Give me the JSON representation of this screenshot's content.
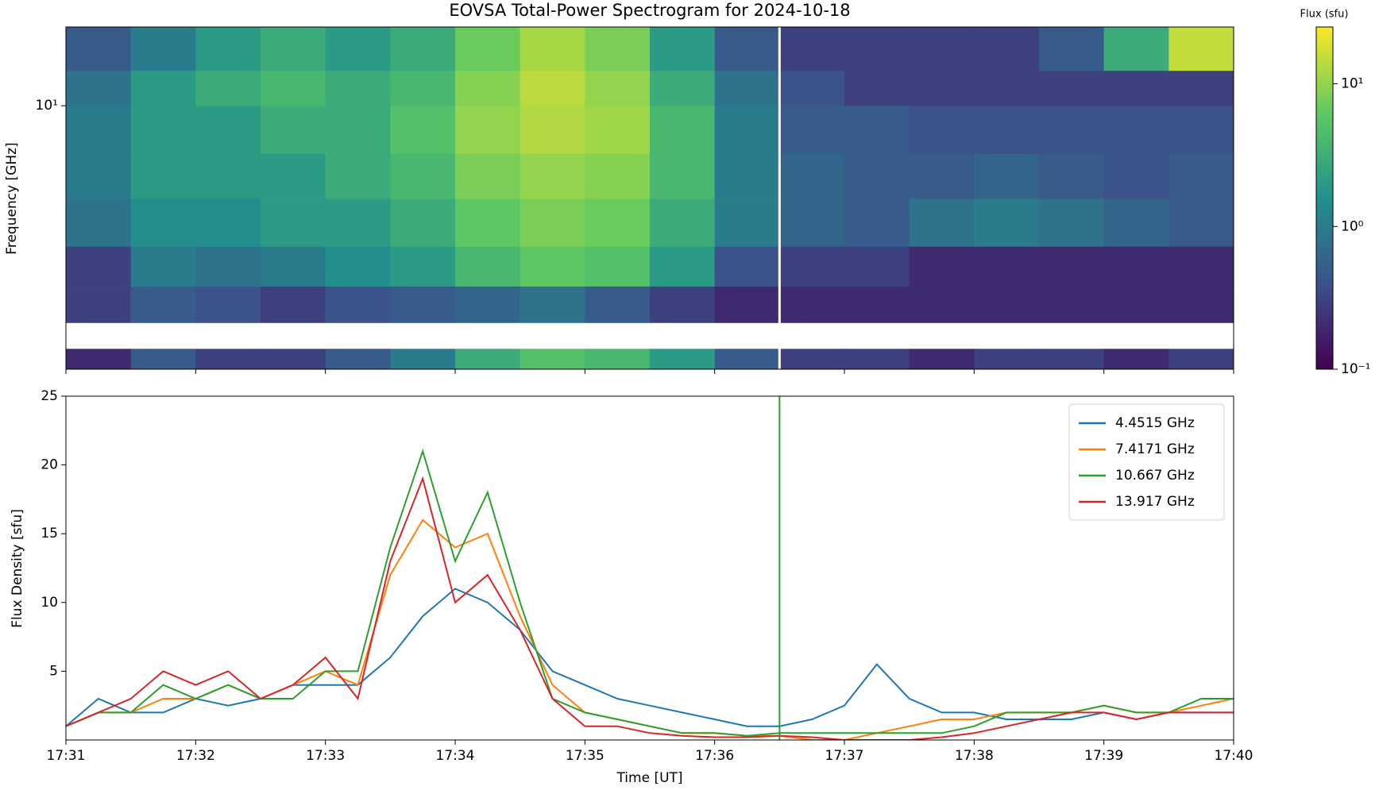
{
  "chart_data": [
    {
      "type": "heatmap",
      "title": "EOVSA Total-Power Spectrogram for 2024-10-18",
      "y_label": "Frequency [GHz]",
      "log_y": true,
      "x": [
        "17:31:00",
        "17:31:30",
        "17:32:00",
        "17:32:30",
        "17:33:00",
        "17:33:30",
        "17:34:00",
        "17:34:30",
        "17:35:00",
        "17:35:30",
        "17:36:00",
        "17:36:30",
        "17:37:00",
        "17:37:30",
        "17:38:00",
        "17:38:30",
        "17:39:00",
        "17:39:30",
        "17:40:00"
      ],
      "y": [
        1.4,
        1.63,
        1.98,
        2.6,
        3.5,
        5,
        7,
        10,
        13,
        18
      ],
      "ylim": [
        1.4,
        18
      ],
      "yticks": [
        {
          "value": 10,
          "label": "10¹"
        }
      ],
      "values": [
        [
          0.2,
          0.5,
          0.3,
          0.3,
          0.5,
          1,
          3,
          5,
          4,
          2,
          0.5,
          0.3,
          0.3,
          0.2,
          0.3,
          0.3,
          0.2,
          0.3
        ],
        [
          null,
          null,
          null,
          null,
          null,
          null,
          null,
          null,
          null,
          null,
          null,
          null,
          null,
          null,
          null,
          null,
          null,
          null
        ],
        [
          0.3,
          0.5,
          0.4,
          0.3,
          0.4,
          0.5,
          0.6,
          0.8,
          0.5,
          0.3,
          0.2,
          0.2,
          0.2,
          0.2,
          0.2,
          0.2,
          0.2,
          0.2
        ],
        [
          0.3,
          1,
          0.8,
          1,
          1.5,
          2,
          4,
          6,
          5,
          2,
          0.4,
          0.3,
          0.3,
          0.2,
          0.2,
          0.2,
          0.2,
          0.2
        ],
        [
          0.8,
          1.5,
          1.5,
          2,
          2,
          3,
          6,
          8,
          7,
          3,
          1,
          0.6,
          0.5,
          0.8,
          1,
          0.8,
          0.6,
          0.5
        ],
        [
          1,
          2,
          2,
          2,
          3,
          4,
          8,
          10,
          9,
          4,
          1,
          0.6,
          0.5,
          0.5,
          0.6,
          0.5,
          0.4,
          0.5
        ],
        [
          1,
          2,
          2,
          3,
          3,
          5,
          10,
          13,
          11,
          4,
          1,
          0.5,
          0.5,
          0.4,
          0.4,
          0.4,
          0.4,
          0.4
        ],
        [
          0.8,
          2,
          3,
          4,
          3,
          4,
          9,
          14,
          10,
          3,
          0.8,
          0.4,
          0.3,
          0.3,
          0.3,
          0.3,
          0.3,
          0.3
        ],
        [
          0.5,
          1,
          2,
          3,
          2,
          3,
          7,
          12,
          8,
          2,
          0.5,
          0.3,
          0.3,
          0.3,
          0.3,
          0.5,
          3,
          15
        ]
      ],
      "vline": {
        "x": "17:36:30",
        "color": "#ffffff"
      },
      "colorbar": {
        "label": "Flux (sfu)",
        "lim": [
          0.1,
          25
        ],
        "log": true,
        "ticks": [
          {
            "value": 0.1,
            "label": "10⁻¹"
          },
          {
            "value": 1,
            "label": "10⁰"
          },
          {
            "value": 10,
            "label": "10¹"
          }
        ]
      }
    },
    {
      "type": "line",
      "x_label": "Time [UT]",
      "y_label": "Flux Density [sfu]",
      "x": [
        "17:31:00",
        "17:31:15",
        "17:31:30",
        "17:31:45",
        "17:32:00",
        "17:32:15",
        "17:32:30",
        "17:32:45",
        "17:33:00",
        "17:33:15",
        "17:33:30",
        "17:33:45",
        "17:34:00",
        "17:34:15",
        "17:34:30",
        "17:34:45",
        "17:35:00",
        "17:35:15",
        "17:35:30",
        "17:35:45",
        "17:36:00",
        "17:36:15",
        "17:36:30",
        "17:36:45",
        "17:37:00",
        "17:37:15",
        "17:37:30",
        "17:37:45",
        "17:38:00",
        "17:38:15",
        "17:38:30",
        "17:38:45",
        "17:39:00",
        "17:39:15",
        "17:39:30",
        "17:39:45",
        "17:40:00"
      ],
      "xlim": [
        "17:31",
        "17:40"
      ],
      "xticks": [
        "17:31",
        "17:32",
        "17:33",
        "17:34",
        "17:35",
        "17:36",
        "17:37",
        "17:38",
        "17:39",
        "17:40"
      ],
      "ylim": [
        0,
        25
      ],
      "yticks": [
        5,
        10,
        15,
        20,
        25
      ],
      "series": [
        {
          "name": "4.4515 GHz",
          "color": "#1f77b4",
          "values": [
            1,
            3,
            2,
            2,
            3,
            2.5,
            3,
            4,
            4,
            4,
            6,
            9,
            11,
            10,
            8,
            5,
            4,
            3,
            2.5,
            2,
            1.5,
            1,
            1,
            1.5,
            2.5,
            5.5,
            3,
            2,
            2,
            1.5,
            1.5,
            1.5,
            2,
            1.5,
            2,
            2,
            2
          ]
        },
        {
          "name": "7.4171 GHz",
          "color": "#ff7f0e",
          "values": [
            1,
            2,
            2,
            3,
            3,
            4,
            3,
            4,
            5,
            4,
            12,
            16,
            14,
            15,
            9,
            4,
            2,
            1.5,
            1,
            0.5,
            0.5,
            0.3,
            0.3,
            0,
            0,
            0.5,
            1,
            1.5,
            1.5,
            2,
            2,
            2,
            2.5,
            2,
            2,
            2.5,
            3
          ]
        },
        {
          "name": "10.667 GHz",
          "color": "#2ca02c",
          "values": [
            1,
            2,
            2,
            4,
            3,
            4,
            3,
            3,
            5,
            5,
            14,
            21,
            13,
            18,
            10,
            3,
            2,
            1.5,
            1,
            0.5,
            0.5,
            0.3,
            0.5,
            0.5,
            0.5,
            0.5,
            0.5,
            0.5,
            1,
            2,
            2,
            2,
            2.5,
            2,
            2,
            3,
            3
          ]
        },
        {
          "name": "13.917 GHz",
          "color": "#d62728",
          "values": [
            1,
            2,
            3,
            5,
            4,
            5,
            3,
            4,
            6,
            3,
            13,
            19,
            10,
            12,
            8,
            3,
            1,
            1,
            0.5,
            0.3,
            0.2,
            0.2,
            0.3,
            0.2,
            0,
            0,
            0,
            0.2,
            0.5,
            1,
            1.5,
            2,
            2,
            1.5,
            2,
            2,
            2
          ]
        }
      ],
      "vline": {
        "x": "17:36:30",
        "color": "#2ca02c"
      },
      "legend": "upper right"
    }
  ]
}
